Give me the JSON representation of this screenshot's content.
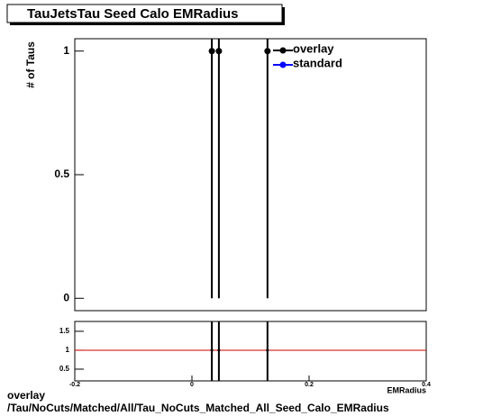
{
  "chart_data": [
    {
      "type": "errorbar",
      "title": "TauJetsTau Seed Calo EMRadius",
      "y_label": "# of Taus",
      "series": [
        {
          "name": "overlay",
          "color": "#000000",
          "x": [
            0.034,
            0.046,
            0.129
          ],
          "values": [
            1,
            1,
            1
          ],
          "errors": [
            1,
            1,
            1
          ]
        },
        {
          "name": "standard",
          "color": "#0000ff",
          "x": [],
          "values": [],
          "errors": []
        }
      ],
      "xlim": [
        -0.2,
        0.4
      ],
      "ylim": [
        -0.05,
        1.05
      ],
      "yticks": [
        0,
        0.5,
        1
      ]
    },
    {
      "type": "errorbar",
      "x_label": "EMRadius",
      "series": [
        {
          "color": "#000000",
          "x": [
            0.034,
            0.046,
            0.129
          ],
          "values": [
            1,
            1,
            1
          ],
          "errors": [
            1,
            1,
            1
          ]
        }
      ],
      "reference_line": {
        "value": 1,
        "color": "#cc0000"
      },
      "xlim": [
        -0.2,
        0.4
      ],
      "xticks": [
        -0.2,
        0,
        0.2,
        0.4
      ],
      "ylim": [
        0.19,
        1.76
      ],
      "yticks": [
        0.5,
        1,
        1.5
      ]
    }
  ],
  "caption": [
    "overlay",
    "/Tau/NoCuts/Matched/All/Tau_NoCuts_Matched_All_Seed_Calo_EMRadius"
  ]
}
